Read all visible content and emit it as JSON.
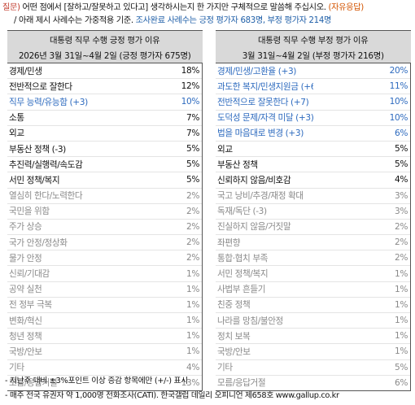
{
  "question": {
    "label": "질문)",
    "text1": " 어떤 점에서 [잘하고/잘못하고 있다고] 생각하시는지 한 가지만 구체적으로 말씀해 주십시오.",
    "note": " (자유응답)",
    "text2_prefix": "/ 아래 제시 사례수는 가중적용 기준. ",
    "text2_blue": "조사완료 사례수는 긍정 평가자 683명, 부정 평가자 214명"
  },
  "left": {
    "title": "대통령 직무 수행 긍정 평가 이유",
    "subtitle": "2026년 3월 31일~4월 2일 (긍정 평가자 675명)",
    "rows": [
      {
        "name": "경제/민생",
        "value": "18%",
        "color": "black"
      },
      {
        "name": "전반적으로 잘한다",
        "value": "12%",
        "color": "black"
      },
      {
        "name": "직무 능력/유능함 (+3)",
        "value": "10%",
        "color": "blue"
      },
      {
        "name": "소통",
        "value": "7%",
        "color": "black"
      },
      {
        "name": "외교",
        "value": "7%",
        "color": "black"
      },
      {
        "name": "부동산 정책 (-3)",
        "value": "5%",
        "color": "black"
      },
      {
        "name": "추진력/실행력/속도감",
        "value": "5%",
        "color": "black"
      },
      {
        "name": "서민 정책/복지",
        "value": "5%",
        "color": "black"
      },
      {
        "name": "열심히 한다/노력한다",
        "value": "2%",
        "color": "gray"
      },
      {
        "name": "국민을 위함",
        "value": "2%",
        "color": "gray"
      },
      {
        "name": "주가 상승",
        "value": "2%",
        "color": "gray"
      },
      {
        "name": "국가 안정/정상화",
        "value": "2%",
        "color": "gray"
      },
      {
        "name": "물가 안정",
        "value": "2%",
        "color": "gray"
      },
      {
        "name": "신뢰/기대감",
        "value": "1%",
        "color": "gray"
      },
      {
        "name": "공약 실천",
        "value": "1%",
        "color": "gray"
      },
      {
        "name": "전 정부 극복",
        "value": "1%",
        "color": "gray"
      },
      {
        "name": "변화/혁신",
        "value": "1%",
        "color": "gray"
      },
      {
        "name": "청년 정책",
        "value": "1%",
        "color": "gray"
      },
      {
        "name": "국방/안보",
        "value": "1%",
        "color": "gray"
      },
      {
        "name": "기타",
        "value": "4%",
        "color": "gray"
      },
      {
        "name": "모름/응답거절",
        "value": "13%",
        "color": "gray"
      }
    ]
  },
  "right": {
    "title": "대통령 직무 수행 부정 평가 이유",
    "subtitle": "3월 31일~4월 2일 (부정 평가자 216명)",
    "rows": [
      {
        "name": "경제/민생/고환율 (+3)",
        "value": "20%",
        "color": "blue"
      },
      {
        "name": "과도한 복지/민생지원금 (+6)",
        "value": "11%",
        "color": "blue"
      },
      {
        "name": "전반적으로 잘못한다 (+7)",
        "value": "10%",
        "color": "blue"
      },
      {
        "name": "도덕성 문제/자격 미달 (+3)",
        "value": "10%",
        "color": "blue"
      },
      {
        "name": "법을 마음대로 변경 (+3)",
        "value": "6%",
        "color": "blue"
      },
      {
        "name": "외교",
        "value": "5%",
        "color": "black"
      },
      {
        "name": "부동산 정책",
        "value": "5%",
        "color": "black"
      },
      {
        "name": "신뢰하지 않음/비호감",
        "value": "4%",
        "color": "black"
      },
      {
        "name": "국고 낭비/추경/재정 확대",
        "value": "3%",
        "color": "gray"
      },
      {
        "name": "독재/독단 (-3)",
        "value": "3%",
        "color": "gray"
      },
      {
        "name": "진실하지 않음/거짓말",
        "value": "2%",
        "color": "gray"
      },
      {
        "name": "좌편향",
        "value": "2%",
        "color": "gray"
      },
      {
        "name": "통합·협치 부족",
        "value": "2%",
        "color": "gray"
      },
      {
        "name": "서민 정책/복지",
        "value": "1%",
        "color": "gray"
      },
      {
        "name": "사법부 흔들기",
        "value": "1%",
        "color": "gray"
      },
      {
        "name": "친중 정책",
        "value": "1%",
        "color": "gray"
      },
      {
        "name": "나라를 망침/불안정",
        "value": "1%",
        "color": "gray"
      },
      {
        "name": "정치 보복",
        "value": "1%",
        "color": "gray"
      },
      {
        "name": "국방/안보",
        "value": "1%",
        "color": "gray"
      },
      {
        "name": "기타",
        "value": "5%",
        "color": "gray"
      },
      {
        "name": "모름/응답거절",
        "value": "6%",
        "color": "gray"
      }
    ]
  },
  "footnotes": [
    "- 지난주 대비 ±3%포인트 이상 증감 항목에만 (+/-) 표시",
    "- 매주 전국 유권자 약 1,000명 전화조사(CATI). 한국갤럽 데일리 오피니언 제658호 www.gallup.co.kr"
  ]
}
